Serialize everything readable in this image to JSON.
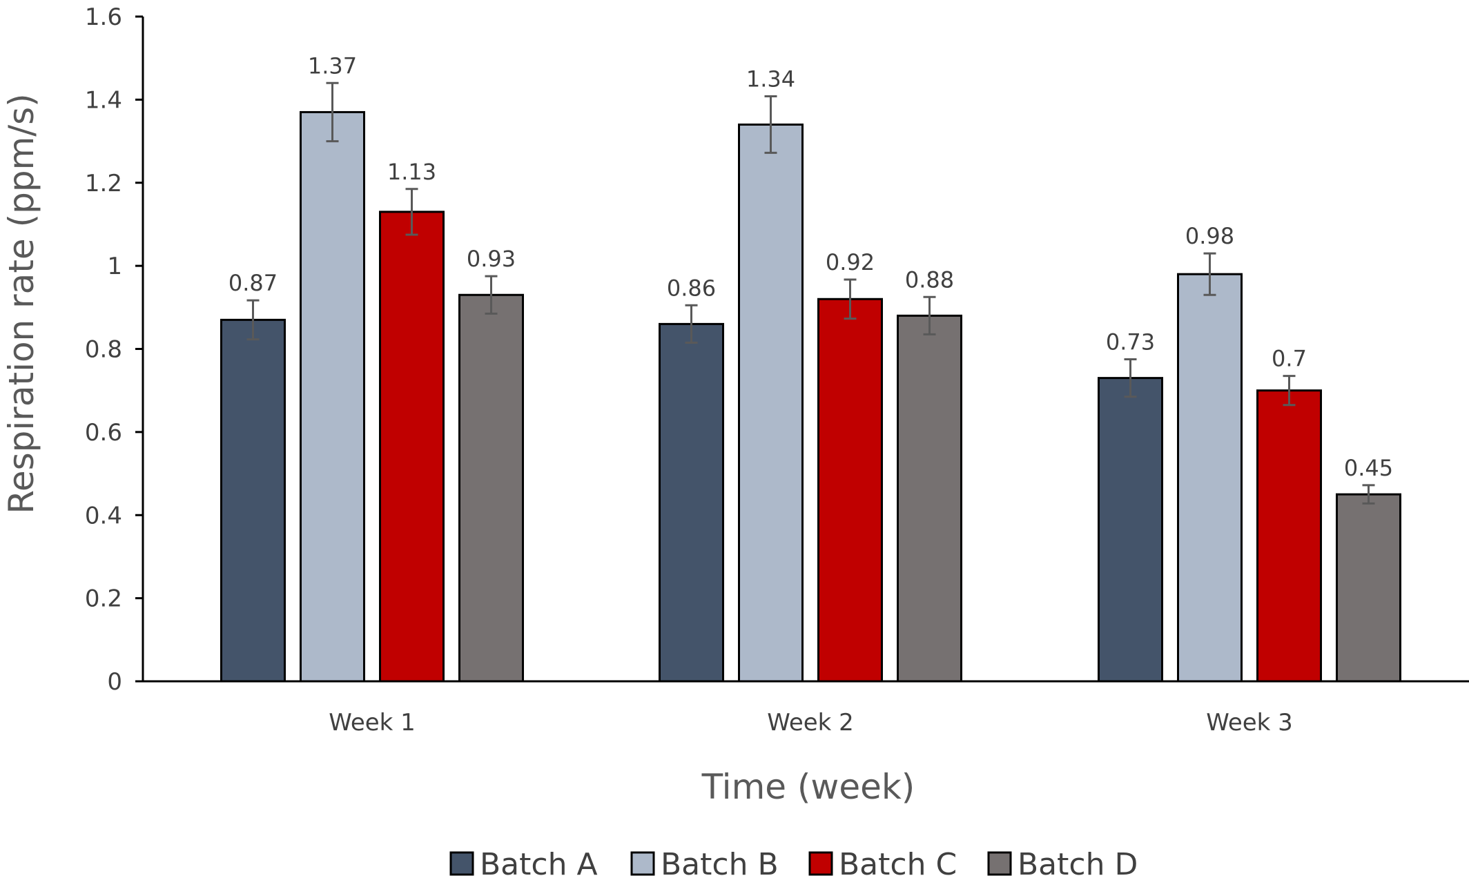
{
  "chart_data": {
    "type": "bar",
    "title": "",
    "xlabel": "Time (week)",
    "ylabel": "Respiration rate (ppm/s)",
    "ylim": [
      0,
      1.6
    ],
    "yticks": [
      "0",
      "0.2",
      "0.4",
      "0.6",
      "0.8",
      "1",
      "1.2",
      "1.4",
      "1.6"
    ],
    "categories": [
      "Week 1",
      "Week 2",
      "Week 3"
    ],
    "grid": false,
    "legend_position": "bottom",
    "series": [
      {
        "name": "Batch A",
        "color": "#44546a",
        "values": [
          0.87,
          0.86,
          0.73
        ],
        "labels": [
          "0.87",
          "0.86",
          "0.73"
        ],
        "errors": [
          0.047,
          0.045,
          0.045
        ]
      },
      {
        "name": "Batch B",
        "color": "#adb9ca",
        "values": [
          1.37,
          1.34,
          0.98
        ],
        "labels": [
          "1.37",
          "1.34",
          "0.98"
        ],
        "errors": [
          0.07,
          0.068,
          0.05
        ]
      },
      {
        "name": "Batch C",
        "color": "#c00000",
        "values": [
          1.13,
          0.92,
          0.7
        ],
        "labels": [
          "1.13",
          "0.92",
          "0.7"
        ],
        "errors": [
          0.055,
          0.047,
          0.035
        ]
      },
      {
        "name": "Batch D",
        "color": "#767171",
        "values": [
          0.93,
          0.88,
          0.45
        ],
        "labels": [
          "0.93",
          "0.88",
          "0.45"
        ],
        "errors": [
          0.045,
          0.045,
          0.022
        ]
      }
    ]
  }
}
